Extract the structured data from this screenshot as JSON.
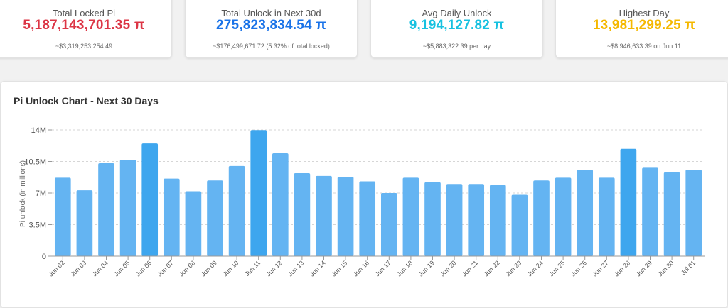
{
  "stats": [
    {
      "label": "Total Locked Pi",
      "value": "5,187,143,701.35 π",
      "sub": "~$3,319,253,254.49",
      "color": "#dc3545"
    },
    {
      "label": "Total Unlock in Next 30d",
      "value": "275,823,834.54 π",
      "sub": "~$176,499,671.72 (5.32% of total locked)",
      "color": "#1a73e8"
    },
    {
      "label": "Avg Daily Unlock",
      "value": "9,194,127.82 π",
      "sub": "~$5,883,322.39 per day",
      "color": "#17c1e0"
    },
    {
      "label": "Highest Day",
      "value": "13,981,299.25 π",
      "sub": "~$8,946,633.39 on Jun 11",
      "color": "#f5b800"
    }
  ],
  "chart_title": "Pi Unlock Chart - Next 30 Days",
  "chart_data": {
    "type": "bar",
    "title": "Pi Unlock Chart - Next 30 Days",
    "xlabel": "",
    "ylabel": "Pi unlock (in millions)",
    "ylim": [
      0,
      14000000
    ],
    "y_ticks": [
      "0",
      "3.5M",
      "7M",
      "10.5M",
      "14M"
    ],
    "grid": true,
    "bar_color": "#64b4f2",
    "highlight_color": "#3ea6ee",
    "highlight": [
      "Jun 06",
      "Jun 11",
      "Jun 28"
    ],
    "categories": [
      "Jun 02",
      "Jun 03",
      "Jun 04",
      "Jun 05",
      "Jun 06",
      "Jun 07",
      "Jun 08",
      "Jun 09",
      "Jun 10",
      "Jun 11",
      "Jun 12",
      "Jun 13",
      "Jun 14",
      "Jun 15",
      "Jun 16",
      "Jun 17",
      "Jun 18",
      "Jun 19",
      "Jun 20",
      "Jun 21",
      "Jun 22",
      "Jun 23",
      "Jun 24",
      "Jun 25",
      "Jun 26",
      "Jun 27",
      "Jun 28",
      "Jun 29",
      "Jun 30",
      "Jul 01"
    ],
    "values": [
      8700000,
      7300000,
      10300000,
      10700000,
      12500000,
      8600000,
      7200000,
      8400000,
      10000000,
      13981299.25,
      11400000,
      9200000,
      8900000,
      8800000,
      8300000,
      7000000,
      8700000,
      8200000,
      8000000,
      8000000,
      7900000,
      6800000,
      8400000,
      8700000,
      9600000,
      8700000,
      11900000,
      9800000,
      9300000,
      9600000
    ]
  }
}
